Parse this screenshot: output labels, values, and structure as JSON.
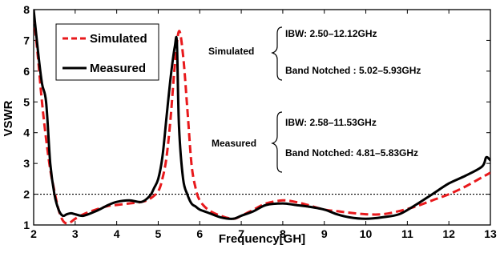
{
  "chart_data": {
    "type": "line",
    "title": "",
    "xlabel": "Frequency[GH]",
    "ylabel": "VSWR",
    "xlim": [
      2,
      13
    ],
    "ylim": [
      1,
      8
    ],
    "xticks": [
      2,
      3,
      4,
      5,
      6,
      7,
      8,
      9,
      10,
      11,
      12,
      13
    ],
    "yticks": [
      1,
      2,
      3,
      4,
      5,
      6,
      7,
      8
    ],
    "grid": false,
    "legend_position": "top-left",
    "reference_line": {
      "y": 2,
      "style": "dotted"
    },
    "series": [
      {
        "name": "Simulated",
        "color": "#e8191c",
        "dash": "dashed",
        "x": [
          2.0,
          2.1,
          2.2,
          2.3,
          2.4,
          2.5,
          2.6,
          2.7,
          2.8,
          2.9,
          3.0,
          3.2,
          3.5,
          3.8,
          4.0,
          4.3,
          4.6,
          4.8,
          5.0,
          5.1,
          5.2,
          5.3,
          5.4,
          5.5,
          5.6,
          5.7,
          5.8,
          5.9,
          6.0,
          6.2,
          6.5,
          6.8,
          7.0,
          7.3,
          7.6,
          8.0,
          8.3,
          8.6,
          9.0,
          9.3,
          9.6,
          10.0,
          10.4,
          10.8,
          11.2,
          11.6,
          12.0,
          12.4,
          12.8,
          13.0
        ],
        "y": [
          7.8,
          6.5,
          5.0,
          3.8,
          2.8,
          2.1,
          1.5,
          1.15,
          1.05,
          1.1,
          1.2,
          1.35,
          1.5,
          1.62,
          1.65,
          1.7,
          1.75,
          1.85,
          2.1,
          2.5,
          3.2,
          4.5,
          6.2,
          7.3,
          6.5,
          4.8,
          3.0,
          2.2,
          1.8,
          1.5,
          1.3,
          1.2,
          1.3,
          1.5,
          1.7,
          1.8,
          1.75,
          1.65,
          1.5,
          1.45,
          1.4,
          1.35,
          1.35,
          1.45,
          1.6,
          1.8,
          2.0,
          2.25,
          2.55,
          2.7
        ]
      },
      {
        "name": "Measured",
        "color": "#000000",
        "dash": "solid",
        "x": [
          2.0,
          2.1,
          2.2,
          2.3,
          2.4,
          2.5,
          2.6,
          2.7,
          2.8,
          2.9,
          3.0,
          3.2,
          3.5,
          3.8,
          4.0,
          4.3,
          4.6,
          4.8,
          4.9,
          5.0,
          5.1,
          5.2,
          5.3,
          5.4,
          5.45,
          5.5,
          5.6,
          5.7,
          5.8,
          5.9,
          6.0,
          6.2,
          6.5,
          6.8,
          7.0,
          7.3,
          7.6,
          8.0,
          8.3,
          8.6,
          9.0,
          9.3,
          9.6,
          10.0,
          10.4,
          10.8,
          11.2,
          11.6,
          12.0,
          12.4,
          12.8,
          12.9,
          13.0
        ],
        "y": [
          8.0,
          6.7,
          5.6,
          5.0,
          3.0,
          2.0,
          1.5,
          1.3,
          1.35,
          1.38,
          1.35,
          1.3,
          1.45,
          1.65,
          1.75,
          1.8,
          1.75,
          1.95,
          2.2,
          2.5,
          3.2,
          4.5,
          5.8,
          6.8,
          6.9,
          4.2,
          2.5,
          2.0,
          1.7,
          1.6,
          1.5,
          1.4,
          1.25,
          1.2,
          1.3,
          1.45,
          1.65,
          1.7,
          1.65,
          1.6,
          1.5,
          1.35,
          1.25,
          1.2,
          1.25,
          1.35,
          1.65,
          2.0,
          2.35,
          2.6,
          2.9,
          3.2,
          3.1
        ]
      }
    ]
  },
  "annotations": {
    "simulated_label": "Simulated",
    "simulated_ibw": "IBW: 2.50–12.12GHz",
    "simulated_notch": "Band Notched : 5.02–5.93GHz",
    "measured_label": "Measured",
    "measured_ibw": "IBW: 2.58–11.53GHz",
    "measured_notch": "Band Notched: 4.81–5.83GHz"
  }
}
